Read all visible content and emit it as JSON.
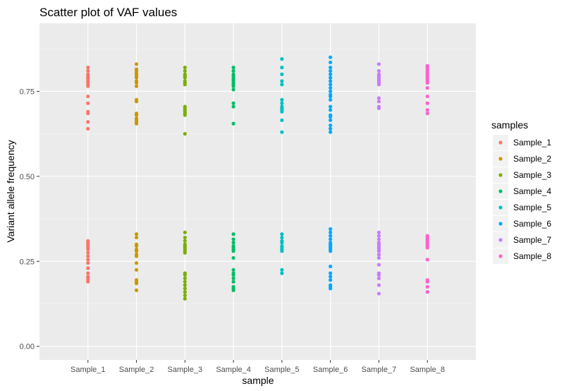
{
  "chart_data": {
    "type": "scatter",
    "title": "Scatter plot of VAF values",
    "xlabel": "sample",
    "ylabel": "Variant allele frequency",
    "categories": [
      "Sample_1",
      "Sample_2",
      "Sample_3",
      "Sample_4",
      "Sample_5",
      "Sample_6",
      "Sample_7",
      "Sample_8"
    ],
    "ylim": [
      -0.04,
      0.95
    ],
    "yticks": [
      0.0,
      0.25,
      0.5,
      0.75
    ],
    "ytick_labels": [
      "0.00",
      "0.25",
      "0.50",
      "0.75"
    ],
    "grid": true,
    "legend": {
      "title": "samples",
      "placement": "right"
    },
    "series": [
      {
        "name": "Sample_1",
        "color": "#F8766D",
        "values": [
          0.82,
          0.81,
          0.8,
          0.795,
          0.79,
          0.785,
          0.78,
          0.775,
          0.77,
          0.765,
          0.735,
          0.715,
          0.69,
          0.685,
          0.66,
          0.64,
          0.31,
          0.305,
          0.3,
          0.295,
          0.29,
          0.285,
          0.275,
          0.265,
          0.255,
          0.245,
          0.23,
          0.215,
          0.205,
          0.2,
          0.195,
          0.19
        ]
      },
      {
        "name": "Sample_2",
        "color": "#CD9600",
        "values": [
          0.83,
          0.815,
          0.81,
          0.805,
          0.8,
          0.795,
          0.79,
          0.78,
          0.775,
          0.765,
          0.725,
          0.72,
          0.685,
          0.68,
          0.67,
          0.665,
          0.66,
          0.655,
          0.33,
          0.32,
          0.3,
          0.295,
          0.285,
          0.28,
          0.27,
          0.265,
          0.245,
          0.225,
          0.195,
          0.19,
          0.185,
          0.165
        ]
      },
      {
        "name": "Sample_3",
        "color": "#7CAE00",
        "values": [
          0.82,
          0.81,
          0.8,
          0.795,
          0.79,
          0.78,
          0.775,
          0.77,
          0.705,
          0.7,
          0.695,
          0.69,
          0.685,
          0.68,
          0.625,
          0.335,
          0.32,
          0.31,
          0.3,
          0.295,
          0.29,
          0.285,
          0.28,
          0.275,
          0.215,
          0.21,
          0.2,
          0.19,
          0.18,
          0.17,
          0.16,
          0.15,
          0.14
        ]
      },
      {
        "name": "Sample_4",
        "color": "#00BE67",
        "values": [
          0.82,
          0.81,
          0.8,
          0.795,
          0.79,
          0.785,
          0.78,
          0.775,
          0.77,
          0.765,
          0.755,
          0.715,
          0.705,
          0.655,
          0.33,
          0.315,
          0.305,
          0.295,
          0.29,
          0.285,
          0.28,
          0.26,
          0.225,
          0.215,
          0.21,
          0.2,
          0.19,
          0.175,
          0.17,
          0.165
        ]
      },
      {
        "name": "Sample_5",
        "color": "#00BFC4",
        "values": [
          0.845,
          0.82,
          0.8,
          0.78,
          0.77,
          0.725,
          0.715,
          0.705,
          0.7,
          0.695,
          0.69,
          0.665,
          0.63,
          0.33,
          0.32,
          0.31,
          0.305,
          0.295,
          0.29,
          0.285,
          0.28,
          0.225,
          0.215
        ]
      },
      {
        "name": "Sample_6",
        "color": "#00A9FF",
        "values": [
          0.85,
          0.835,
          0.82,
          0.81,
          0.8,
          0.79,
          0.78,
          0.77,
          0.76,
          0.75,
          0.74,
          0.735,
          0.725,
          0.705,
          0.695,
          0.68,
          0.675,
          0.665,
          0.65,
          0.64,
          0.63,
          0.345,
          0.335,
          0.325,
          0.315,
          0.305,
          0.3,
          0.295,
          0.29,
          0.285,
          0.28,
          0.235,
          0.215,
          0.205,
          0.195,
          0.18,
          0.175,
          0.17
        ]
      },
      {
        "name": "Sample_7",
        "color": "#C77CFF",
        "values": [
          0.83,
          0.81,
          0.8,
          0.795,
          0.79,
          0.785,
          0.78,
          0.775,
          0.77,
          0.73,
          0.72,
          0.705,
          0.7,
          0.335,
          0.325,
          0.315,
          0.305,
          0.3,
          0.295,
          0.29,
          0.285,
          0.28,
          0.27,
          0.26,
          0.24,
          0.215,
          0.21,
          0.2,
          0.18,
          0.155
        ]
      },
      {
        "name": "Sample_8",
        "color": "#FF61CC",
        "values": [
          0.825,
          0.82,
          0.815,
          0.81,
          0.805,
          0.8,
          0.795,
          0.79,
          0.785,
          0.78,
          0.775,
          0.76,
          0.735,
          0.715,
          0.695,
          0.685,
          0.325,
          0.32,
          0.315,
          0.31,
          0.305,
          0.3,
          0.295,
          0.29,
          0.255,
          0.195,
          0.19,
          0.175,
          0.16
        ]
      }
    ]
  }
}
